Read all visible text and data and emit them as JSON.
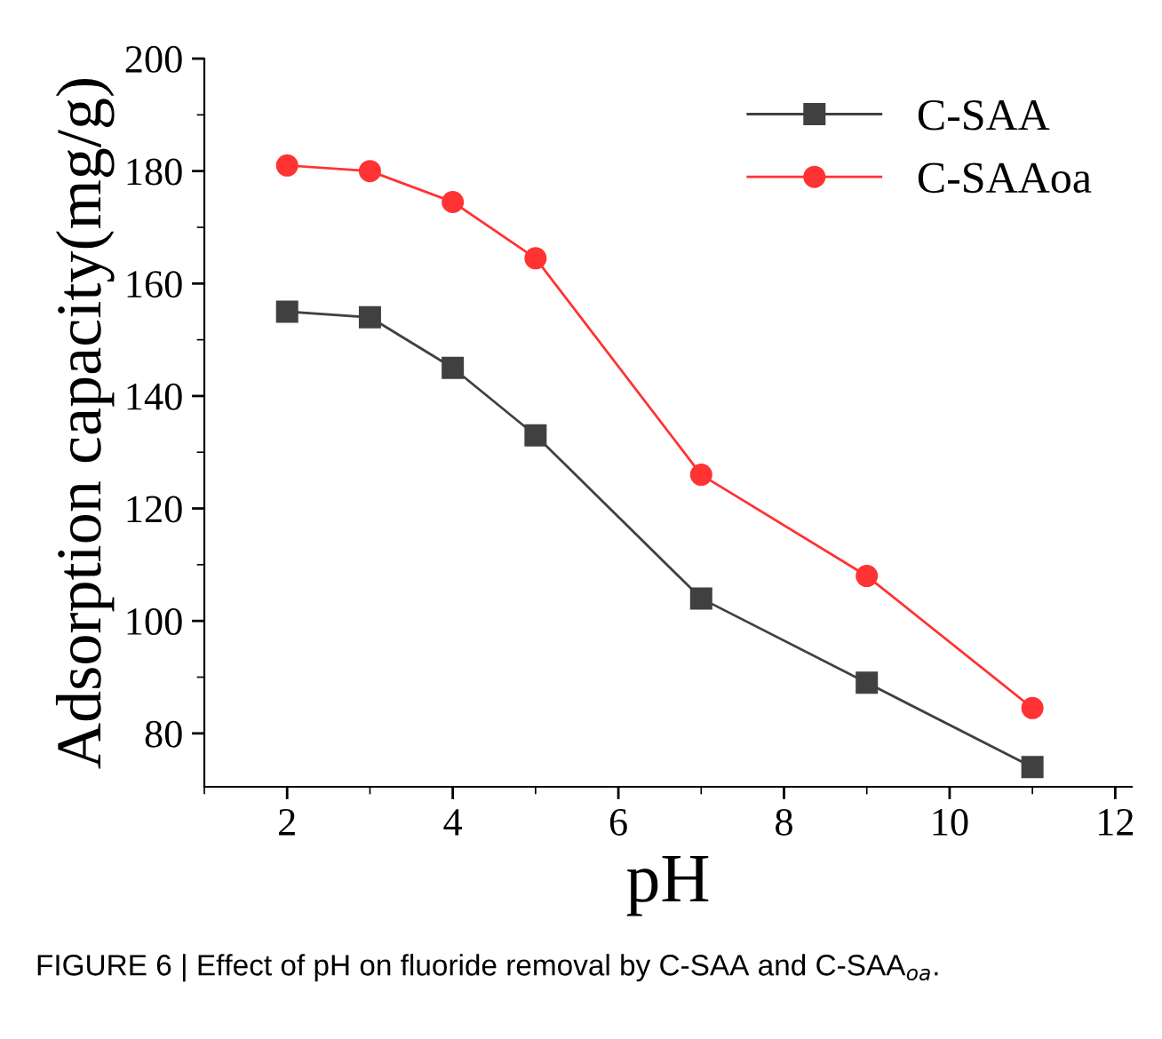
{
  "chart_data": {
    "type": "line",
    "xlabel": "pH",
    "ylabel": "Adsorption capacity(mg/g)",
    "x": [
      2,
      3,
      4,
      5,
      7,
      9,
      11
    ],
    "series": [
      {
        "name": "C-SAA",
        "color": "#404040",
        "marker": "square",
        "values": [
          155,
          154,
          145,
          133,
          104,
          89,
          74
        ]
      },
      {
        "name": "C-SAAoa",
        "color": "#ff3333",
        "marker": "circle",
        "values": [
          181,
          180,
          174.5,
          164.5,
          126,
          108,
          84.5
        ]
      }
    ],
    "xlim": [
      1,
      12.2
    ],
    "xticks": [
      2,
      4,
      6,
      8,
      10,
      12
    ],
    "ylim": [
      70.5,
      200
    ],
    "yticks": [
      80,
      100,
      120,
      140,
      160,
      180,
      200
    ],
    "grid": false,
    "legend": "top right",
    "annotations": [
      "FIGURE 6 | Effect of pH on fluoride removal by C-SAA and C-SAA$_{oa}$."
    ]
  }
}
